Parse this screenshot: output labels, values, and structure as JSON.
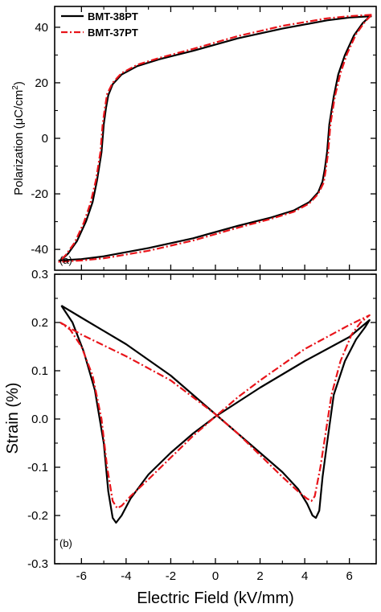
{
  "chart_data": [
    {
      "type": "line",
      "panel_label": "(a)",
      "xlabel": "",
      "ylabel": "Polarization (μC/cm²)",
      "ylabel_parts": {
        "base": "Polarization (",
        "mu": "μ",
        "unit": "C/cm",
        "sup": "2",
        "close": ")"
      },
      "xlim": [
        -7.2,
        7.2
      ],
      "ylim": [
        -47.5,
        47.5
      ],
      "x_ticks": [
        -6,
        -4,
        -2,
        0,
        2,
        4,
        6
      ],
      "y_ticks": [
        40,
        20,
        0,
        -20,
        -40
      ],
      "y_tick_labels": [
        "40",
        "20",
        "0",
        "-20",
        "-40"
      ],
      "legend_position": "top-left",
      "series": [
        {
          "name": "BMT-38PT",
          "color": "#000000",
          "style": "solid",
          "points": [
            [
              7.0,
              44
            ],
            [
              6.0,
              43.5
            ],
            [
              5.0,
              42.5
            ],
            [
              3.0,
              39.5
            ],
            [
              1.0,
              36.0
            ],
            [
              -1.0,
              31.5
            ],
            [
              -2.5,
              28.5
            ],
            [
              -3.5,
              26.0
            ],
            [
              -4.2,
              23.0
            ],
            [
              -4.6,
              19.5
            ],
            [
              -4.8,
              15.5
            ],
            [
              -4.9,
              11.0
            ],
            [
              -5.0,
              5.0
            ],
            [
              -5.1,
              -5.0
            ],
            [
              -5.3,
              -15.0
            ],
            [
              -5.5,
              -23.0
            ],
            [
              -5.8,
              -30.0
            ],
            [
              -6.2,
              -37.0
            ],
            [
              -6.6,
              -41.5
            ],
            [
              -6.9,
              -43.8
            ],
            [
              -7.0,
              -44
            ],
            [
              -6.0,
              -43.5
            ],
            [
              -5.0,
              -42.5
            ],
            [
              -3.0,
              -39.5
            ],
            [
              -1.0,
              -36.0
            ],
            [
              1.0,
              -31.5
            ],
            [
              2.5,
              -28.5
            ],
            [
              3.5,
              -26.0
            ],
            [
              4.2,
              -23.0
            ],
            [
              4.6,
              -19.5
            ],
            [
              4.8,
              -15.5
            ],
            [
              4.9,
              -11.0
            ],
            [
              5.0,
              -5.0
            ],
            [
              5.1,
              5.0
            ],
            [
              5.3,
              15.0
            ],
            [
              5.5,
              23.0
            ],
            [
              5.8,
              30.0
            ],
            [
              6.2,
              37.0
            ],
            [
              6.6,
              41.5
            ],
            [
              6.9,
              43.8
            ],
            [
              7.0,
              44
            ]
          ]
        },
        {
          "name": "BMT-37PT",
          "color": "#e8141a",
          "style": "dash-dot",
          "points": [
            [
              7.0,
              44.5
            ],
            [
              6.0,
              44.0
            ],
            [
              5.0,
              43.2
            ],
            [
              3.0,
              40.5
            ],
            [
              1.0,
              36.8
            ],
            [
              -1.0,
              32.2
            ],
            [
              -2.5,
              29.0
            ],
            [
              -3.5,
              26.5
            ],
            [
              -4.2,
              23.5
            ],
            [
              -4.6,
              20.0
            ],
            [
              -4.85,
              16.0
            ],
            [
              -4.95,
              11.0
            ],
            [
              -5.05,
              5.0
            ],
            [
              -5.15,
              -5.0
            ],
            [
              -5.35,
              -15.0
            ],
            [
              -5.6,
              -23.5
            ],
            [
              -5.9,
              -30.5
            ],
            [
              -6.3,
              -37.5
            ],
            [
              -6.7,
              -42.0
            ],
            [
              -7.0,
              -44.5
            ],
            [
              -6.0,
              -44.0
            ],
            [
              -5.0,
              -43.2
            ],
            [
              -3.0,
              -40.5
            ],
            [
              -1.0,
              -36.8
            ],
            [
              1.0,
              -32.2
            ],
            [
              2.5,
              -29.0
            ],
            [
              3.5,
              -26.5
            ],
            [
              4.2,
              -23.5
            ],
            [
              4.6,
              -20.0
            ],
            [
              4.85,
              -16.0
            ],
            [
              4.95,
              -11.0
            ],
            [
              5.05,
              -5.0
            ],
            [
              5.15,
              5.0
            ],
            [
              5.35,
              15.0
            ],
            [
              5.6,
              23.5
            ],
            [
              5.9,
              30.5
            ],
            [
              6.3,
              37.5
            ],
            [
              6.7,
              42.0
            ],
            [
              7.0,
              44.5
            ]
          ]
        }
      ]
    },
    {
      "type": "line",
      "panel_label": "(b)",
      "xlabel": "Electric Field (kV/mm)",
      "ylabel": "Strain (%)",
      "xlim": [
        -7.2,
        7.2
      ],
      "ylim": [
        -0.3,
        0.3
      ],
      "x_ticks": [
        -6,
        -4,
        -2,
        0,
        2,
        4,
        6
      ],
      "x_tick_labels": [
        "-6",
        "-4",
        "-2",
        "0",
        "2",
        "4",
        "6"
      ],
      "y_ticks": [
        0.3,
        0.2,
        0.1,
        0.0,
        -0.1,
        -0.2,
        -0.3
      ],
      "y_tick_labels": [
        "0.3",
        "0.2",
        "0.1",
        "0.0",
        "-0.1",
        "-0.2",
        "-0.3"
      ],
      "series": [
        {
          "name": "BMT-38PT",
          "color": "#000000",
          "style": "solid",
          "points": [
            [
              -6.9,
              0.235
            ],
            [
              -6.0,
              0.21
            ],
            [
              -4.0,
              0.155
            ],
            [
              -2.0,
              0.09
            ],
            [
              -1.0,
              0.05
            ],
            [
              0.0,
              0.01
            ],
            [
              1.0,
              -0.03
            ],
            [
              2.0,
              -0.07
            ],
            [
              3.0,
              -0.11
            ],
            [
              3.7,
              -0.145
            ],
            [
              4.1,
              -0.175
            ],
            [
              4.35,
              -0.2
            ],
            [
              4.5,
              -0.205
            ],
            [
              4.65,
              -0.19
            ],
            [
              4.8,
              -0.12
            ],
            [
              5.0,
              -0.05
            ],
            [
              5.3,
              0.05
            ],
            [
              5.8,
              0.12
            ],
            [
              6.3,
              0.165
            ],
            [
              6.7,
              0.19
            ],
            [
              6.9,
              0.205
            ],
            [
              6.0,
              0.17
            ],
            [
              4.0,
              0.12
            ],
            [
              2.0,
              0.065
            ],
            [
              1.0,
              0.035
            ],
            [
              0.0,
              0.005
            ],
            [
              -1.0,
              -0.03
            ],
            [
              -2.0,
              -0.07
            ],
            [
              -3.0,
              -0.115
            ],
            [
              -3.8,
              -0.165
            ],
            [
              -4.2,
              -0.2
            ],
            [
              -4.45,
              -0.215
            ],
            [
              -4.6,
              -0.205
            ],
            [
              -4.8,
              -0.15
            ],
            [
              -5.0,
              -0.05
            ],
            [
              -5.4,
              0.06
            ],
            [
              -5.9,
              0.14
            ],
            [
              -6.4,
              0.2
            ],
            [
              -6.9,
              0.235
            ]
          ]
        },
        {
          "name": "BMT-37PT",
          "color": "#e8141a",
          "style": "dash-dot",
          "points": [
            [
              -6.95,
              0.2
            ],
            [
              -6.0,
              0.175
            ],
            [
              -4.0,
              0.13
            ],
            [
              -2.0,
              0.08
            ],
            [
              -1.0,
              0.045
            ],
            [
              0.0,
              0.01
            ],
            [
              1.0,
              -0.03
            ],
            [
              2.0,
              -0.075
            ],
            [
              3.0,
              -0.12
            ],
            [
              3.7,
              -0.15
            ],
            [
              4.1,
              -0.165
            ],
            [
              4.3,
              -0.17
            ],
            [
              4.45,
              -0.16
            ],
            [
              4.7,
              -0.1
            ],
            [
              4.9,
              -0.04
            ],
            [
              5.2,
              0.05
            ],
            [
              5.6,
              0.12
            ],
            [
              6.1,
              0.175
            ],
            [
              6.5,
              0.2
            ],
            [
              6.9,
              0.215
            ],
            [
              6.0,
              0.195
            ],
            [
              4.0,
              0.145
            ],
            [
              2.0,
              0.08
            ],
            [
              1.0,
              0.045
            ],
            [
              0.0,
              0.005
            ],
            [
              -1.0,
              -0.035
            ],
            [
              -2.0,
              -0.08
            ],
            [
              -3.0,
              -0.125
            ],
            [
              -3.8,
              -0.16
            ],
            [
              -4.2,
              -0.18
            ],
            [
              -4.4,
              -0.185
            ],
            [
              -4.6,
              -0.17
            ],
            [
              -4.85,
              -0.1
            ],
            [
              -5.1,
              0.0
            ],
            [
              -5.5,
              0.09
            ],
            [
              -6.0,
              0.15
            ],
            [
              -6.5,
              0.185
            ],
            [
              -6.95,
              0.2
            ]
          ]
        }
      ]
    }
  ]
}
